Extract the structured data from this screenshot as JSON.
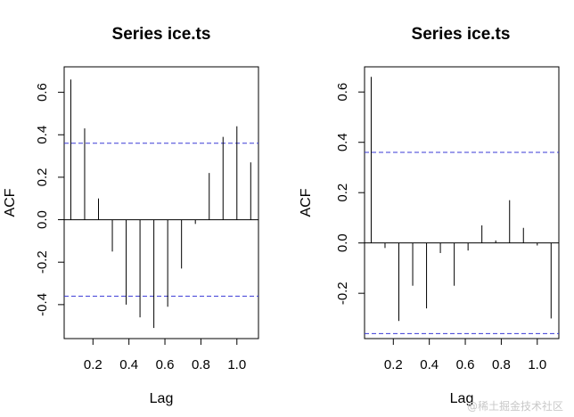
{
  "chart_data": [
    {
      "type": "bar",
      "subtype": "acf-stem",
      "title": "Series ice.ts",
      "xlabel": "Lag",
      "ylabel": "ACF",
      "xlim": [
        0.04,
        1.12
      ],
      "ylim": [
        -0.56,
        0.72
      ],
      "xticks": [
        0.2,
        0.4,
        0.6,
        0.8,
        1.0
      ],
      "xtick_labels": [
        "0.2",
        "0.4",
        "0.6",
        "0.8",
        "1.0"
      ],
      "yticks": [
        -0.4,
        -0.2,
        0.0,
        0.2,
        0.4,
        0.6
      ],
      "ytick_labels": [
        "-0.4",
        "-0.2",
        "0.0",
        "0.2",
        "0.4",
        "0.6"
      ],
      "ci": 0.36,
      "x": [
        0.0769,
        0.1538,
        0.2308,
        0.3077,
        0.3846,
        0.4615,
        0.5385,
        0.6154,
        0.6923,
        0.7692,
        0.8462,
        0.9231,
        1.0,
        1.0769
      ],
      "values": [
        0.66,
        0.43,
        0.1,
        -0.15,
        -0.4,
        -0.46,
        -0.51,
        -0.41,
        -0.23,
        -0.02,
        0.22,
        0.39,
        0.44,
        0.27
      ]
    },
    {
      "type": "bar",
      "subtype": "pacf-stem",
      "title": "Series ice.ts",
      "xlabel": "Lag",
      "ylabel": "ACF",
      "xlim": [
        0.04,
        1.12
      ],
      "ylim": [
        -0.38,
        0.7
      ],
      "xticks": [
        0.2,
        0.4,
        0.6,
        0.8,
        1.0
      ],
      "xtick_labels": [
        "0.2",
        "0.4",
        "0.6",
        "0.8",
        "1.0"
      ],
      "yticks": [
        -0.2,
        0.0,
        0.2,
        0.4,
        0.6
      ],
      "ytick_labels": [
        "-0.2",
        "0.0",
        "0.2",
        "0.4",
        "0.6"
      ],
      "ci": 0.36,
      "x": [
        0.0769,
        0.1538,
        0.2308,
        0.3077,
        0.3846,
        0.4615,
        0.5385,
        0.6154,
        0.6923,
        0.7692,
        0.8462,
        0.9231,
        1.0,
        1.0769
      ],
      "values": [
        0.66,
        -0.02,
        -0.31,
        -0.17,
        -0.26,
        -0.04,
        -0.17,
        -0.03,
        0.07,
        0.01,
        0.17,
        0.06,
        -0.01,
        -0.3
      ]
    }
  ],
  "watermark": "@稀土掘金技术社区",
  "colors": {
    "ci_line": "#3a3ad6",
    "stem": "#000000"
  }
}
